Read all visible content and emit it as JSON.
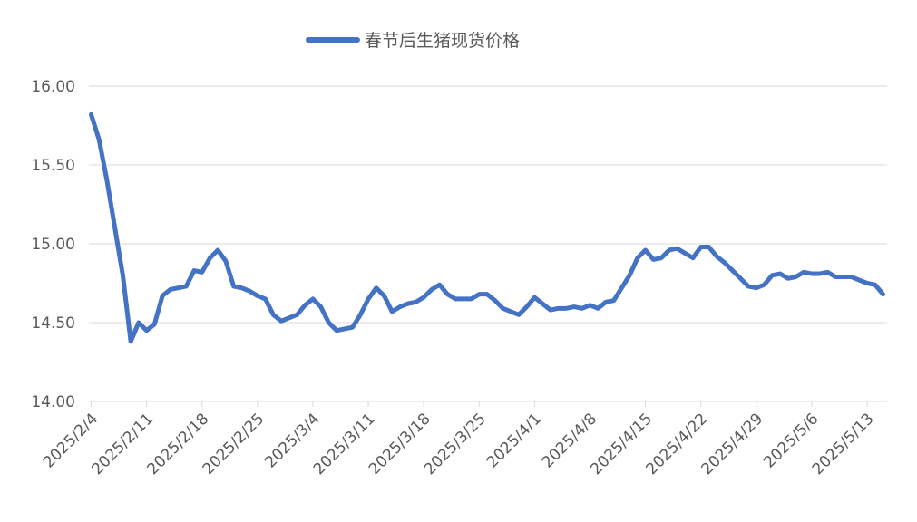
{
  "chart_data": {
    "type": "line",
    "title": "",
    "xlabel": "",
    "ylabel": "",
    "ylim": [
      14.0,
      16.0
    ],
    "y_ticks": [
      "14.00",
      "14.50",
      "15.00",
      "15.50",
      "16.00"
    ],
    "grid": true,
    "legend_position": "top",
    "x_tick_labels": [
      "2025/2/4",
      "2025/2/11",
      "2025/2/18",
      "2025/2/25",
      "2025/3/4",
      "2025/3/11",
      "2025/3/18",
      "2025/3/25",
      "2025/4/1",
      "2025/4/8",
      "2025/4/15",
      "2025/4/22",
      "2025/4/29",
      "2025/5/6",
      "2025/5/13"
    ],
    "x": [
      "2025/2/4",
      "2025/2/5",
      "2025/2/6",
      "2025/2/7",
      "2025/2/8",
      "2025/2/9",
      "2025/2/10",
      "2025/2/11",
      "2025/2/12",
      "2025/2/13",
      "2025/2/14",
      "2025/2/15",
      "2025/2/16",
      "2025/2/17",
      "2025/2/18",
      "2025/2/19",
      "2025/2/20",
      "2025/2/21",
      "2025/2/22",
      "2025/2/23",
      "2025/2/24",
      "2025/2/25",
      "2025/2/26",
      "2025/2/27",
      "2025/2/28",
      "2025/3/1",
      "2025/3/2",
      "2025/3/3",
      "2025/3/4",
      "2025/3/5",
      "2025/3/6",
      "2025/3/7",
      "2025/3/8",
      "2025/3/9",
      "2025/3/10",
      "2025/3/11",
      "2025/3/12",
      "2025/3/13",
      "2025/3/14",
      "2025/3/15",
      "2025/3/16",
      "2025/3/17",
      "2025/3/18",
      "2025/3/19",
      "2025/3/20",
      "2025/3/21",
      "2025/3/22",
      "2025/3/23",
      "2025/3/24",
      "2025/3/25",
      "2025/3/26",
      "2025/3/27",
      "2025/3/28",
      "2025/3/29",
      "2025/3/30",
      "2025/3/31",
      "2025/4/1",
      "2025/4/2",
      "2025/4/3",
      "2025/4/4",
      "2025/4/5",
      "2025/4/6",
      "2025/4/7",
      "2025/4/8",
      "2025/4/9",
      "2025/4/10",
      "2025/4/11",
      "2025/4/12",
      "2025/4/13",
      "2025/4/14",
      "2025/4/15",
      "2025/4/16",
      "2025/4/17",
      "2025/4/18",
      "2025/4/19",
      "2025/4/20",
      "2025/4/21",
      "2025/4/22",
      "2025/4/23",
      "2025/4/24",
      "2025/4/25",
      "2025/4/26",
      "2025/4/27",
      "2025/4/28",
      "2025/4/29",
      "2025/4/30",
      "2025/5/1",
      "2025/5/2",
      "2025/5/3",
      "2025/5/4",
      "2025/5/5",
      "2025/5/6",
      "2025/5/7",
      "2025/5/8",
      "2025/5/9",
      "2025/5/10",
      "2025/5/11",
      "2025/5/12",
      "2025/5/13",
      "2025/5/14",
      "2025/5/15"
    ],
    "series": [
      {
        "name": "春节后生猪现货价格",
        "color": "#4472C4",
        "values": [
          15.82,
          15.66,
          15.4,
          15.1,
          14.8,
          14.38,
          14.5,
          14.45,
          14.49,
          14.67,
          14.71,
          14.72,
          14.73,
          14.83,
          14.82,
          14.91,
          14.96,
          14.89,
          14.73,
          14.72,
          14.7,
          14.67,
          14.65,
          14.55,
          14.51,
          14.53,
          14.55,
          14.61,
          14.65,
          14.6,
          14.5,
          14.45,
          14.46,
          14.47,
          14.55,
          14.65,
          14.72,
          14.67,
          14.57,
          14.6,
          14.62,
          14.63,
          14.66,
          14.71,
          14.74,
          14.68,
          14.65,
          14.65,
          14.65,
          14.68,
          14.68,
          14.64,
          14.59,
          14.57,
          14.55,
          14.6,
          14.66,
          14.62,
          14.58,
          14.59,
          14.59,
          14.6,
          14.59,
          14.61,
          14.59,
          14.63,
          14.64,
          14.72,
          14.8,
          14.91,
          14.96,
          14.9,
          14.91,
          14.96,
          14.97,
          14.94,
          14.91,
          14.98,
          14.98,
          14.92,
          14.88,
          14.83,
          14.78,
          14.73,
          14.72,
          14.74,
          14.8,
          14.81,
          14.78,
          14.79,
          14.82,
          14.81,
          14.81,
          14.82,
          14.79,
          14.79,
          14.79,
          14.77,
          14.75,
          14.74,
          14.68
        ]
      }
    ]
  }
}
